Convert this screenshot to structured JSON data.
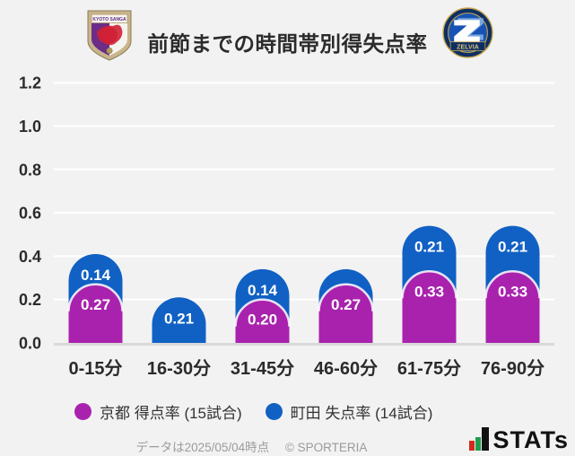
{
  "header": {
    "title": "前節までの時間帯別得失点率",
    "home_crest": "kyoto-sanga-crest",
    "home_crest_text": "KYOTO SANGA",
    "away_crest": "machida-zelvia-crest",
    "away_crest_text": "ZELVIA"
  },
  "chart_data": {
    "type": "bar",
    "stacked": true,
    "title": "前節までの時間帯別得失点率",
    "categories": [
      "0-15分",
      "16-30分",
      "31-45分",
      "46-60分",
      "61-75分",
      "76-90分"
    ],
    "series": [
      {
        "name": "京都 得点率 (15試合)",
        "color": "#a922ad",
        "values": [
          0.27,
          0.0,
          0.2,
          0.27,
          0.33,
          0.33
        ],
        "labels": [
          "0.27",
          null,
          "0.20",
          "0.27",
          "0.33",
          "0.33"
        ]
      },
      {
        "name": "町田 失点率 (14試合)",
        "color": "#1161c4",
        "values": [
          0.14,
          0.21,
          0.14,
          0.07,
          0.21,
          0.21
        ],
        "labels": [
          "0.14",
          "0.21",
          "0.14",
          null,
          "0.21",
          "0.21"
        ]
      }
    ],
    "ylim": [
      0,
      1.2
    ],
    "ytick_step": 0.2,
    "yticks": [
      "0.0",
      "0.2",
      "0.4",
      "0.6",
      "0.8",
      "1.0",
      "1.2"
    ],
    "grid": true,
    "grid_color": "#ffffff",
    "baseline_color": "#d9d9d9",
    "legend_position": "bottom"
  },
  "legend": {
    "items": [
      {
        "label": "京都 得点率 (15試合)",
        "color": "#a922ad"
      },
      {
        "label": "町田 失点率 (14試合)",
        "color": "#1161c4"
      }
    ]
  },
  "footer": {
    "data_note": "データは2025/05/04時点",
    "copyright": "© SPORTERIA",
    "brand": "STATs"
  }
}
